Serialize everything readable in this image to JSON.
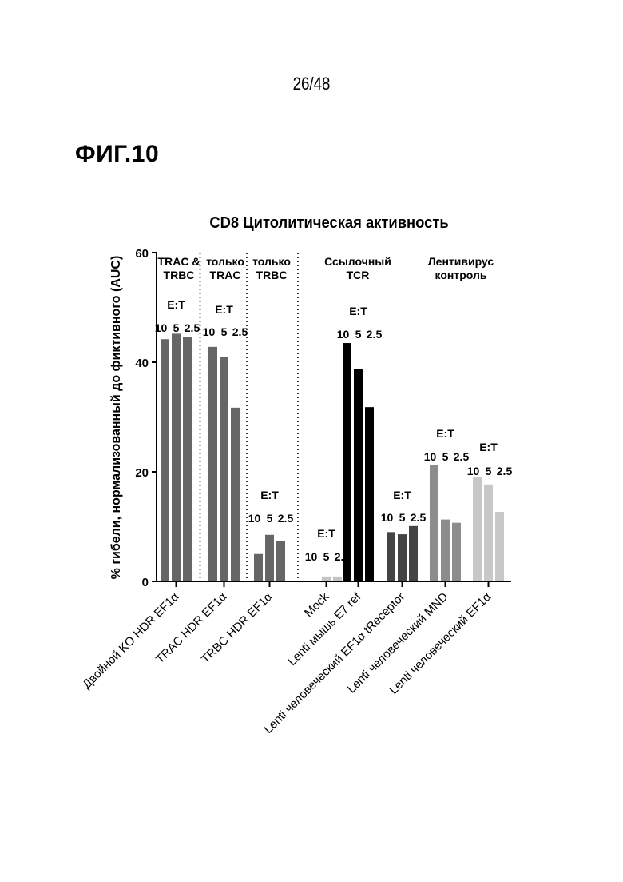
{
  "page": {
    "number": "26/48",
    "figure_label": "ФИГ.10"
  },
  "chart_data": {
    "type": "bar",
    "title": "CD8 Цитолитическая активность",
    "ylabel": "% гибели, нормализованный до фиктивного (AUC)",
    "xlabel": "",
    "ylim": [
      0,
      60
    ],
    "y_ticks": [
      "0",
      "20",
      "40",
      "60"
    ],
    "et_label": "E:T",
    "ratio_labels": [
      "10",
      "5",
      "2.5"
    ],
    "groups": [
      {
        "category": "Двойной KO HDR EF1α",
        "values": [
          44.2,
          45.2,
          44.6
        ],
        "color": "#666666"
      },
      {
        "category": "TRAC HDR EF1α",
        "values": [
          42.8,
          40.9,
          31.7
        ],
        "color": "#666666"
      },
      {
        "category": "TRBC HDR EF1α",
        "values": [
          5.0,
          8.5,
          7.3
        ],
        "color": "#666666"
      },
      {
        "category": "Mock",
        "values": [
          0,
          0.9,
          0.9
        ],
        "color": "#c4c4c4"
      },
      {
        "category": "Lenti  мышь  E7 ref",
        "values": [
          43.5,
          38.7,
          31.8
        ],
        "color": "#000000"
      },
      {
        "category": "Lenti человеческий EF1α tReceptor",
        "values": [
          9.0,
          8.6,
          10.1
        ],
        "color": "#444444"
      },
      {
        "category": "Lenti человеческий MND",
        "values": [
          21.3,
          11.3,
          10.7
        ],
        "color": "#8c8c8c"
      },
      {
        "category": "Lenti человеческий EF1α",
        "values": [
          19.0,
          17.7,
          12.7
        ],
        "color": "#c8c8c8"
      }
    ],
    "section_labels": [
      {
        "lines": [
          "TRAC &",
          "TRBC"
        ]
      },
      {
        "lines": [
          "только",
          "TRAC"
        ]
      },
      {
        "lines": [
          "только",
          "TRBC"
        ]
      },
      {
        "lines": [
          "Ссылочный",
          "TCR"
        ]
      },
      {
        "lines": [
          "Лентивирус",
          "контроль"
        ]
      }
    ],
    "dividers_after_group": [
      0,
      1,
      2
    ],
    "grid": false,
    "legend": "none"
  }
}
